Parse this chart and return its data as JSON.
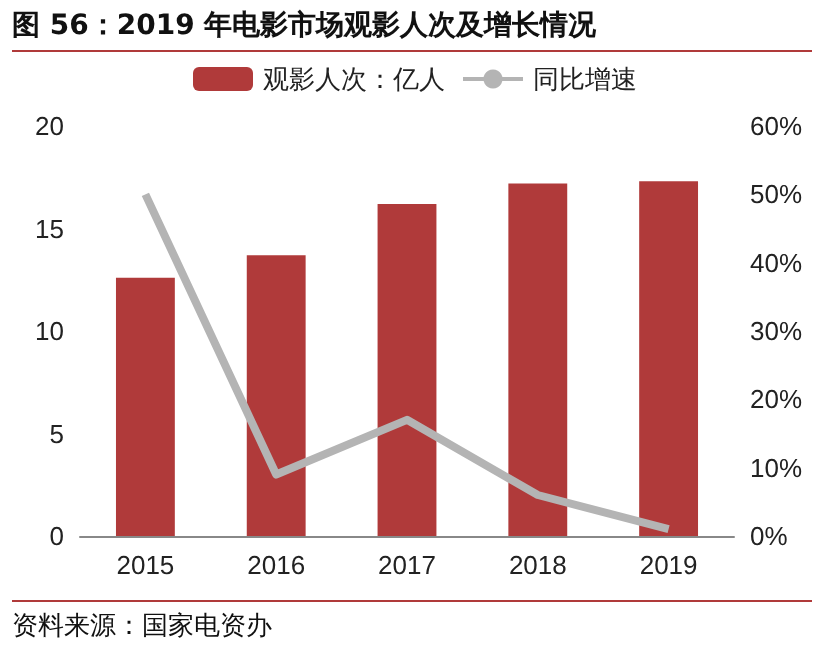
{
  "chart_data": {
    "type": "bar",
    "title": "图 56：2019 年电影市场观影人次及增长情况",
    "categories": [
      "2015",
      "2016",
      "2017",
      "2018",
      "2019"
    ],
    "series": [
      {
        "name": "观影人次：亿人",
        "color": "#b03a3a",
        "values": [
          12.6,
          13.7,
          16.2,
          17.2,
          17.3
        ]
      },
      {
        "name": "同比增速",
        "type": "line",
        "axis": "y2",
        "color": "#b4b4b4",
        "values": [
          50,
          9,
          17,
          6,
          1
        ]
      }
    ],
    "ylim": [
      0,
      20
    ],
    "yticks": [
      0,
      5,
      10,
      15,
      20
    ],
    "y2lim": [
      0,
      60
    ],
    "y2ticks": [
      {
        "value": 0,
        "label": "0%"
      },
      {
        "value": 10,
        "label": "10%"
      },
      {
        "value": 20,
        "label": "20%"
      },
      {
        "value": 30,
        "label": "30%"
      },
      {
        "value": 40,
        "label": "40%"
      },
      {
        "value": 50,
        "label": "50%"
      },
      {
        "value": 60,
        "label": "60%"
      }
    ],
    "legend": "top",
    "grid": false,
    "marker": "none",
    "annotations": [
      "资料来源：国家电资办"
    ]
  }
}
